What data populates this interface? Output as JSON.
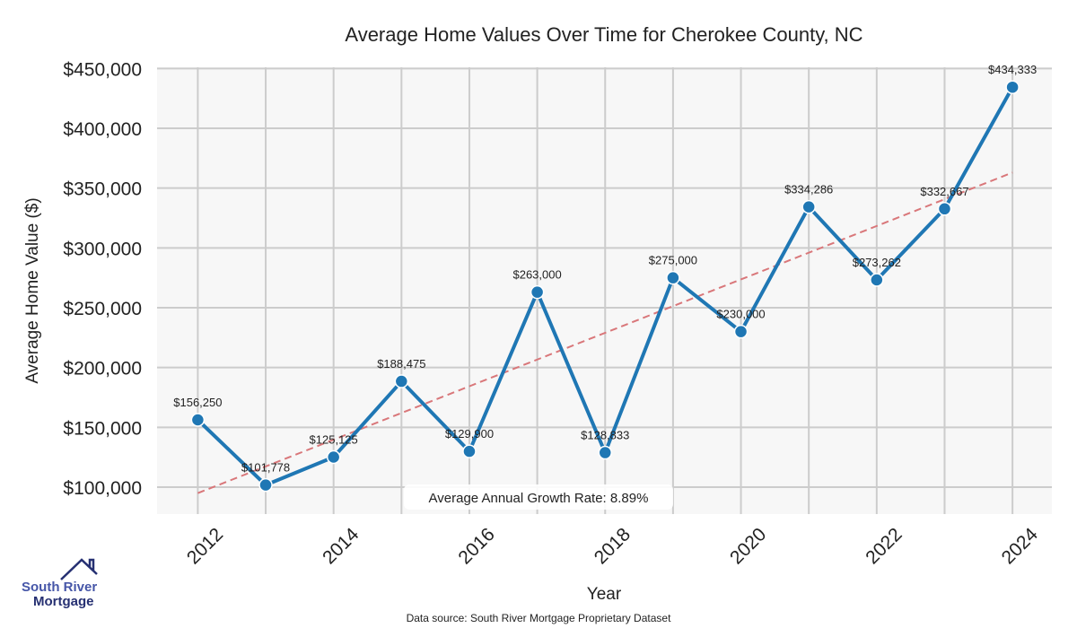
{
  "chart_data": {
    "type": "line",
    "title": "Average Home Values Over Time for Cherokee County, NC",
    "xlabel": "Year",
    "ylabel": "Average Home Value ($)",
    "x": [
      2012,
      2013,
      2014,
      2015,
      2016,
      2017,
      2018,
      2019,
      2020,
      2021,
      2022,
      2023,
      2024
    ],
    "series": [
      {
        "name": "Average Home Value",
        "values": [
          156250,
          101778,
          125125,
          188475,
          129900,
          263000,
          128833,
          275000,
          230000,
          334286,
          273262,
          332667,
          434333
        ],
        "color": "#1f77b4"
      },
      {
        "name": "Trend",
        "style": "dashed",
        "color": "#d9777a",
        "start": [
          2012,
          95000
        ],
        "end": [
          2024,
          363000
        ]
      }
    ],
    "data_labels": [
      "$156,250",
      "$101,778",
      "$125,125",
      "$188,475",
      "$129,900",
      "$263,000",
      "$128,833",
      "$275,000",
      "$230,000",
      "$334,286",
      "$273,262",
      "$332,667",
      "$434,333"
    ],
    "xticks": [
      2012,
      2014,
      2016,
      2018,
      2020,
      2022,
      2024
    ],
    "xtick_labels": [
      "2012",
      "2014",
      "2016",
      "2018",
      "2020",
      "2022",
      "2024"
    ],
    "yticks": [
      100000,
      150000,
      200000,
      250000,
      300000,
      350000,
      400000,
      450000
    ],
    "ytick_labels": [
      "$100,000",
      "$150,000",
      "$200,000",
      "$250,000",
      "$300,000",
      "$350,000",
      "$400,000",
      "$450,000"
    ],
    "xlim": [
      2011.4,
      2024.58
    ],
    "ylim": [
      77500,
      451000
    ],
    "grid": true,
    "annotation": "Average Annual Growth Rate: 8.89%",
    "source": "Data source: South River Mortgage Proprietary Dataset"
  },
  "logo": {
    "line1": "South River",
    "line2": "Mortgage"
  }
}
